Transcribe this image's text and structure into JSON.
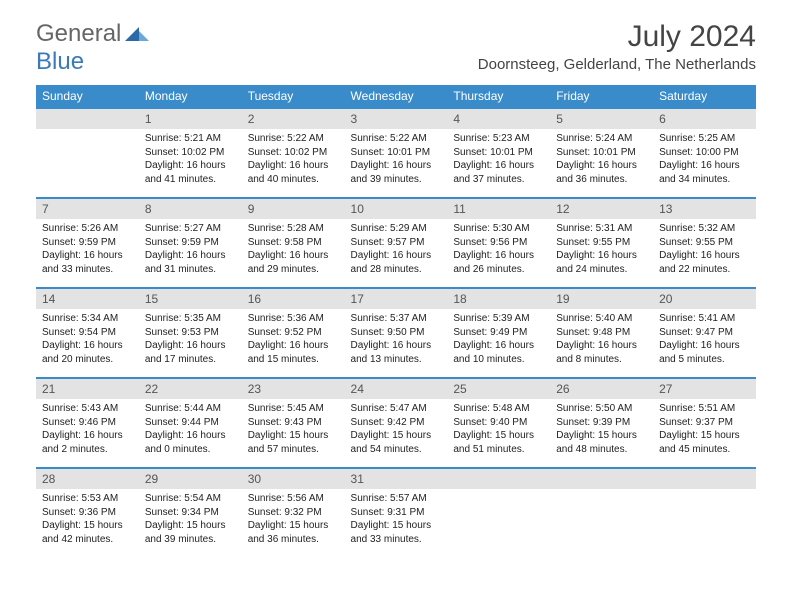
{
  "brand": {
    "part1": "General",
    "part2": "Blue"
  },
  "title": "July 2024",
  "location": "Doornsteeg, Gelderland, The Netherlands",
  "colors": {
    "header_bg": "#3a8bc9",
    "daynum_bg": "#e3e3e3",
    "border": "#3a8bc9",
    "text": "#222222",
    "title_text": "#444444"
  },
  "day_names": [
    "Sunday",
    "Monday",
    "Tuesday",
    "Wednesday",
    "Thursday",
    "Friday",
    "Saturday"
  ],
  "weeks": [
    [
      null,
      {
        "n": "1",
        "sr": "5:21 AM",
        "ss": "10:02 PM",
        "dl": "16 hours and 41 minutes."
      },
      {
        "n": "2",
        "sr": "5:22 AM",
        "ss": "10:02 PM",
        "dl": "16 hours and 40 minutes."
      },
      {
        "n": "3",
        "sr": "5:22 AM",
        "ss": "10:01 PM",
        "dl": "16 hours and 39 minutes."
      },
      {
        "n": "4",
        "sr": "5:23 AM",
        "ss": "10:01 PM",
        "dl": "16 hours and 37 minutes."
      },
      {
        "n": "5",
        "sr": "5:24 AM",
        "ss": "10:01 PM",
        "dl": "16 hours and 36 minutes."
      },
      {
        "n": "6",
        "sr": "5:25 AM",
        "ss": "10:00 PM",
        "dl": "16 hours and 34 minutes."
      }
    ],
    [
      {
        "n": "7",
        "sr": "5:26 AM",
        "ss": "9:59 PM",
        "dl": "16 hours and 33 minutes."
      },
      {
        "n": "8",
        "sr": "5:27 AM",
        "ss": "9:59 PM",
        "dl": "16 hours and 31 minutes."
      },
      {
        "n": "9",
        "sr": "5:28 AM",
        "ss": "9:58 PM",
        "dl": "16 hours and 29 minutes."
      },
      {
        "n": "10",
        "sr": "5:29 AM",
        "ss": "9:57 PM",
        "dl": "16 hours and 28 minutes."
      },
      {
        "n": "11",
        "sr": "5:30 AM",
        "ss": "9:56 PM",
        "dl": "16 hours and 26 minutes."
      },
      {
        "n": "12",
        "sr": "5:31 AM",
        "ss": "9:55 PM",
        "dl": "16 hours and 24 minutes."
      },
      {
        "n": "13",
        "sr": "5:32 AM",
        "ss": "9:55 PM",
        "dl": "16 hours and 22 minutes."
      }
    ],
    [
      {
        "n": "14",
        "sr": "5:34 AM",
        "ss": "9:54 PM",
        "dl": "16 hours and 20 minutes."
      },
      {
        "n": "15",
        "sr": "5:35 AM",
        "ss": "9:53 PM",
        "dl": "16 hours and 17 minutes."
      },
      {
        "n": "16",
        "sr": "5:36 AM",
        "ss": "9:52 PM",
        "dl": "16 hours and 15 minutes."
      },
      {
        "n": "17",
        "sr": "5:37 AM",
        "ss": "9:50 PM",
        "dl": "16 hours and 13 minutes."
      },
      {
        "n": "18",
        "sr": "5:39 AM",
        "ss": "9:49 PM",
        "dl": "16 hours and 10 minutes."
      },
      {
        "n": "19",
        "sr": "5:40 AM",
        "ss": "9:48 PM",
        "dl": "16 hours and 8 minutes."
      },
      {
        "n": "20",
        "sr": "5:41 AM",
        "ss": "9:47 PM",
        "dl": "16 hours and 5 minutes."
      }
    ],
    [
      {
        "n": "21",
        "sr": "5:43 AM",
        "ss": "9:46 PM",
        "dl": "16 hours and 2 minutes."
      },
      {
        "n": "22",
        "sr": "5:44 AM",
        "ss": "9:44 PM",
        "dl": "16 hours and 0 minutes."
      },
      {
        "n": "23",
        "sr": "5:45 AM",
        "ss": "9:43 PM",
        "dl": "15 hours and 57 minutes."
      },
      {
        "n": "24",
        "sr": "5:47 AM",
        "ss": "9:42 PM",
        "dl": "15 hours and 54 minutes."
      },
      {
        "n": "25",
        "sr": "5:48 AM",
        "ss": "9:40 PM",
        "dl": "15 hours and 51 minutes."
      },
      {
        "n": "26",
        "sr": "5:50 AM",
        "ss": "9:39 PM",
        "dl": "15 hours and 48 minutes."
      },
      {
        "n": "27",
        "sr": "5:51 AM",
        "ss": "9:37 PM",
        "dl": "15 hours and 45 minutes."
      }
    ],
    [
      {
        "n": "28",
        "sr": "5:53 AM",
        "ss": "9:36 PM",
        "dl": "15 hours and 42 minutes."
      },
      {
        "n": "29",
        "sr": "5:54 AM",
        "ss": "9:34 PM",
        "dl": "15 hours and 39 minutes."
      },
      {
        "n": "30",
        "sr": "5:56 AM",
        "ss": "9:32 PM",
        "dl": "15 hours and 36 minutes."
      },
      {
        "n": "31",
        "sr": "5:57 AM",
        "ss": "9:31 PM",
        "dl": "15 hours and 33 minutes."
      },
      null,
      null,
      null
    ]
  ],
  "labels": {
    "sunrise": "Sunrise: ",
    "sunset": "Sunset: ",
    "daylight": "Daylight: "
  }
}
